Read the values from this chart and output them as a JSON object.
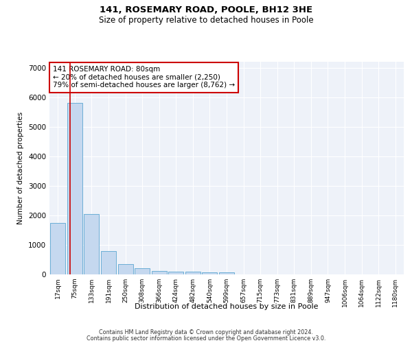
{
  "title1": "141, ROSEMARY ROAD, POOLE, BH12 3HE",
  "title2": "Size of property relative to detached houses in Poole",
  "xlabel": "Distribution of detached houses by size in Poole",
  "ylabel": "Number of detached properties",
  "bar_labels": [
    "17sqm",
    "75sqm",
    "133sqm",
    "191sqm",
    "250sqm",
    "308sqm",
    "366sqm",
    "424sqm",
    "482sqm",
    "540sqm",
    "599sqm",
    "657sqm",
    "715sqm",
    "773sqm",
    "831sqm",
    "889sqm",
    "947sqm",
    "1006sqm",
    "1064sqm",
    "1122sqm",
    "1180sqm"
  ],
  "bar_values": [
    1750,
    5800,
    2050,
    800,
    350,
    200,
    120,
    100,
    100,
    70,
    60,
    0,
    0,
    0,
    0,
    0,
    0,
    0,
    0,
    0,
    0
  ],
  "bar_color": "#c5d8ef",
  "bar_edge_color": "#6baed6",
  "highlight_line_color": "#cc0000",
  "highlight_box_color": "#cc0000",
  "annotation_text": "141 ROSEMARY ROAD: 80sqm\n← 20% of detached houses are smaller (2,250)\n79% of semi-detached houses are larger (8,762) →",
  "ylim": [
    0,
    7200
  ],
  "yticks": [
    0,
    1000,
    2000,
    3000,
    4000,
    5000,
    6000,
    7000
  ],
  "bg_color": "#eef2f9",
  "grid_color": "#ffffff",
  "footer1": "Contains HM Land Registry data © Crown copyright and database right 2024.",
  "footer2": "Contains public sector information licensed under the Open Government Licence v3.0."
}
